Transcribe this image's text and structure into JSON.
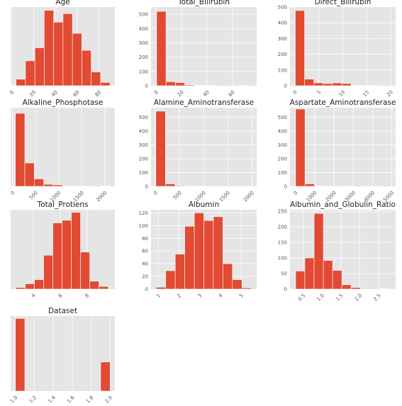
{
  "chart_data": [
    {
      "type": "bar",
      "title": "Age",
      "xlim": [
        -1,
        94.5
      ],
      "ylim": [
        0,
        120
      ],
      "xticks": [
        0,
        20,
        40,
        60,
        80
      ],
      "xtick_labels": [
        "0",
        "20",
        "40",
        "60",
        "80"
      ],
      "yticks": [],
      "ytick_labels": [],
      "bins": [
        [
          4,
          12.6,
          10
        ],
        [
          12.6,
          21.2,
          38
        ],
        [
          21.2,
          29.8,
          58
        ],
        [
          29.8,
          38.4,
          115
        ],
        [
          38.4,
          47,
          97
        ],
        [
          47,
          55.6,
          110
        ],
        [
          55.6,
          64.2,
          80
        ],
        [
          64.2,
          72.8,
          54
        ],
        [
          72.8,
          81.4,
          21
        ],
        [
          81.4,
          90,
          5
        ]
      ]
    },
    {
      "type": "bar",
      "title": "Total_Bilirubin",
      "xlim": [
        -4,
        79
      ],
      "ylim": [
        0,
        550
      ],
      "xticks": [
        0,
        20,
        40,
        60
      ],
      "xtick_labels": [
        "0",
        "20",
        "40",
        "60"
      ],
      "yticks": [
        0,
        100,
        200,
        300,
        400,
        500
      ],
      "ytick_labels": [
        "0",
        "100",
        "200",
        "300",
        "400",
        "500"
      ],
      "bins": [
        [
          0.4,
          7.79,
          520
        ],
        [
          7.79,
          15.18,
          28
        ],
        [
          15.18,
          22.57,
          22
        ],
        [
          22.57,
          29.96,
          6
        ],
        [
          29.96,
          37.35,
          3
        ],
        [
          37.35,
          44.74,
          2
        ],
        [
          44.74,
          52.13,
          0
        ],
        [
          52.13,
          59.52,
          0
        ],
        [
          59.52,
          66.91,
          0
        ],
        [
          66.91,
          74.3,
          1
        ]
      ]
    },
    {
      "type": "bar",
      "title": "Direct_Bilirubin",
      "xlim": [
        -1,
        21
      ],
      "ylim": [
        0,
        500
      ],
      "xticks": [
        0,
        5,
        10,
        15,
        20
      ],
      "xtick_labels": [
        "0",
        "5",
        "10",
        "15",
        "20"
      ],
      "yticks": [
        0,
        100,
        200,
        300,
        400,
        500
      ],
      "ytick_labels": [
        "0",
        "100",
        "200",
        "300",
        "400",
        "500"
      ],
      "bins": [
        [
          0.1,
          2.04,
          478
        ],
        [
          2.04,
          3.98,
          42
        ],
        [
          3.98,
          5.92,
          18
        ],
        [
          5.92,
          7.86,
          14
        ],
        [
          7.86,
          9.8,
          18
        ],
        [
          9.8,
          11.74,
          14
        ],
        [
          11.74,
          13.68,
          3
        ],
        [
          13.68,
          15.62,
          1
        ],
        [
          15.62,
          17.56,
          1
        ],
        [
          17.56,
          19.5,
          0
        ]
      ]
    },
    {
      "type": "bar",
      "title": "Alkaline_Phosphotase",
      "xlim": [
        -40,
        2220
      ],
      "ylim": [
        0,
        420
      ],
      "xticks": [
        0,
        500,
        1000,
        1500,
        2000
      ],
      "xtick_labels": [
        "0",
        "500",
        "1000",
        "1500",
        "2000"
      ],
      "yticks": [],
      "ytick_labels": [],
      "bins": [
        [
          63,
          267.7,
          390
        ],
        [
          267.7,
          472.4,
          125
        ],
        [
          472.4,
          677.1,
          40
        ],
        [
          677.1,
          881.8,
          11
        ],
        [
          881.8,
          1086.5,
          8
        ],
        [
          1086.5,
          1291.2,
          2
        ],
        [
          1291.2,
          1495.9,
          1
        ],
        [
          1495.9,
          1700.6,
          1
        ],
        [
          1700.6,
          1905.3,
          0
        ],
        [
          1905.3,
          2110,
          2
        ]
      ]
    },
    {
      "type": "bar",
      "title": "Alamine_Aminotransferase",
      "xlim": [
        -90,
        2100
      ],
      "ylim": [
        0,
        570
      ],
      "xticks": [
        0,
        500,
        1000,
        1500,
        2000
      ],
      "xtick_labels": [
        "0",
        "500",
        "1000",
        "1500",
        "2000"
      ],
      "yticks": [
        0,
        100,
        200,
        300,
        400,
        500
      ],
      "ytick_labels": [
        "0",
        "100",
        "200",
        "300",
        "400",
        "500"
      ],
      "bins": [
        [
          10,
          208.9,
          545
        ],
        [
          208.9,
          407.8,
          18
        ],
        [
          407.8,
          606.7,
          5
        ],
        [
          606.7,
          805.6,
          2
        ],
        [
          805.6,
          1004.5,
          2
        ],
        [
          1004.5,
          1203.4,
          1
        ],
        [
          1203.4,
          1402.3,
          0
        ],
        [
          1402.3,
          1601.2,
          0
        ],
        [
          1601.2,
          1800.1,
          0
        ],
        [
          1800.1,
          1999,
          1
        ]
      ]
    },
    {
      "type": "bar",
      "title": "Aspartate_Aminotransferase",
      "xlim": [
        -280,
        5200
      ],
      "ylim": [
        0,
        570
      ],
      "xticks": [
        0,
        1000,
        2000,
        3000,
        4000,
        5000
      ],
      "xtick_labels": [
        "0",
        "1000",
        "2000",
        "3000",
        "4000",
        "5000"
      ],
      "yticks": [
        0,
        100,
        200,
        300,
        400,
        500
      ],
      "ytick_labels": [
        "0",
        "100",
        "200",
        "300",
        "400",
        "500"
      ],
      "bins": [
        [
          10,
          499,
          560
        ],
        [
          499,
          988,
          18
        ],
        [
          988,
          1477,
          3
        ],
        [
          1477,
          1966,
          1
        ],
        [
          1966,
          2455,
          0
        ],
        [
          2455,
          2944,
          1
        ],
        [
          2944,
          3433,
          0
        ],
        [
          3433,
          3922,
          0
        ],
        [
          3922,
          4411,
          0
        ],
        [
          4411,
          4900,
          0
        ]
      ]
    },
    {
      "type": "bar",
      "title": "Total_Protiens",
      "xlim": [
        2.3,
        10.1
      ],
      "ylim": [
        0,
        150
      ],
      "xticks": [
        4,
        6,
        8
      ],
      "xtick_labels": [
        "4",
        "6",
        "8"
      ],
      "yticks": [],
      "ytick_labels": [],
      "bins": [
        [
          2.7,
          3.39,
          3
        ],
        [
          3.39,
          4.08,
          10
        ],
        [
          4.08,
          4.77,
          18
        ],
        [
          4.77,
          5.46,
          64
        ],
        [
          5.46,
          6.15,
          125
        ],
        [
          6.15,
          6.84,
          130
        ],
        [
          6.84,
          7.53,
          145
        ],
        [
          7.53,
          8.22,
          70
        ],
        [
          8.22,
          8.91,
          15
        ],
        [
          8.91,
          9.6,
          5
        ]
      ]
    },
    {
      "type": "bar",
      "title": "Albumin",
      "xlim": [
        0.65,
        5.75
      ],
      "ylim": [
        0,
        125
      ],
      "xticks": [
        1,
        2,
        3,
        4,
        5
      ],
      "xtick_labels": [
        "1",
        "2",
        "3",
        "4",
        "5"
      ],
      "yticks": [
        0,
        20,
        40,
        60,
        80,
        100,
        120
      ],
      "ytick_labels": [
        "0",
        "20",
        "40",
        "60",
        "80",
        "100",
        "120"
      ],
      "bins": [
        [
          0.9,
          1.36,
          3
        ],
        [
          1.36,
          1.82,
          29
        ],
        [
          1.82,
          2.28,
          55
        ],
        [
          2.28,
          2.74,
          99
        ],
        [
          2.74,
          3.2,
          120
        ],
        [
          3.2,
          3.66,
          108
        ],
        [
          3.66,
          4.12,
          114
        ],
        [
          4.12,
          4.58,
          40
        ],
        [
          4.58,
          5.04,
          15
        ],
        [
          5.04,
          5.5,
          2
        ]
      ]
    },
    {
      "type": "bar",
      "title": "Albumin_and_Globulin_Ratio",
      "xlim": [
        0.15,
        2.95
      ],
      "ylim": [
        0,
        255
      ],
      "xticks": [
        0.5,
        1.0,
        1.5,
        2.0,
        2.5
      ],
      "xtick_labels": [
        "0.5",
        "1.0",
        "1.5",
        "2.0",
        "2.5"
      ],
      "yticks": [
        0,
        50,
        100,
        150,
        200,
        250
      ],
      "ytick_labels": [
        "0",
        "50",
        "100",
        "150",
        "200",
        "250"
      ],
      "bins": [
        [
          0.3,
          0.545,
          58
        ],
        [
          0.545,
          0.79,
          100
        ],
        [
          0.79,
          1.035,
          243
        ],
        [
          1.035,
          1.28,
          92
        ],
        [
          1.28,
          1.525,
          60
        ],
        [
          1.525,
          1.77,
          14
        ],
        [
          1.77,
          2.015,
          5
        ],
        [
          2.015,
          2.26,
          0
        ],
        [
          2.26,
          2.505,
          0
        ],
        [
          2.505,
          2.75,
          1
        ]
      ]
    },
    {
      "type": "bar",
      "title": "Dataset",
      "xlim": [
        0.95,
        2.05
      ],
      "ylim": [
        0,
        430
      ],
      "xticks": [
        1.0,
        1.2,
        1.4,
        1.6,
        1.8,
        2.0
      ],
      "xtick_labels": [
        "1.0",
        "1.2",
        "1.4",
        "1.6",
        "1.8",
        "2.0"
      ],
      "yticks": [],
      "ytick_labels": [],
      "bins": [
        [
          1.0,
          1.1,
          416
        ],
        [
          1.1,
          1.2,
          0
        ],
        [
          1.2,
          1.3,
          0
        ],
        [
          1.3,
          1.4,
          0
        ],
        [
          1.4,
          1.5,
          0
        ],
        [
          1.5,
          1.6,
          0
        ],
        [
          1.6,
          1.7,
          0
        ],
        [
          1.7,
          1.8,
          0
        ],
        [
          1.8,
          1.9,
          0
        ],
        [
          1.9,
          2.0,
          167
        ]
      ]
    }
  ],
  "colors": {
    "bar": "#e24a33",
    "bar_edge": "#ffffff",
    "panel": "#e5e5e5",
    "grid": "#ffffff",
    "text": "#555555",
    "title": "#222222"
  }
}
